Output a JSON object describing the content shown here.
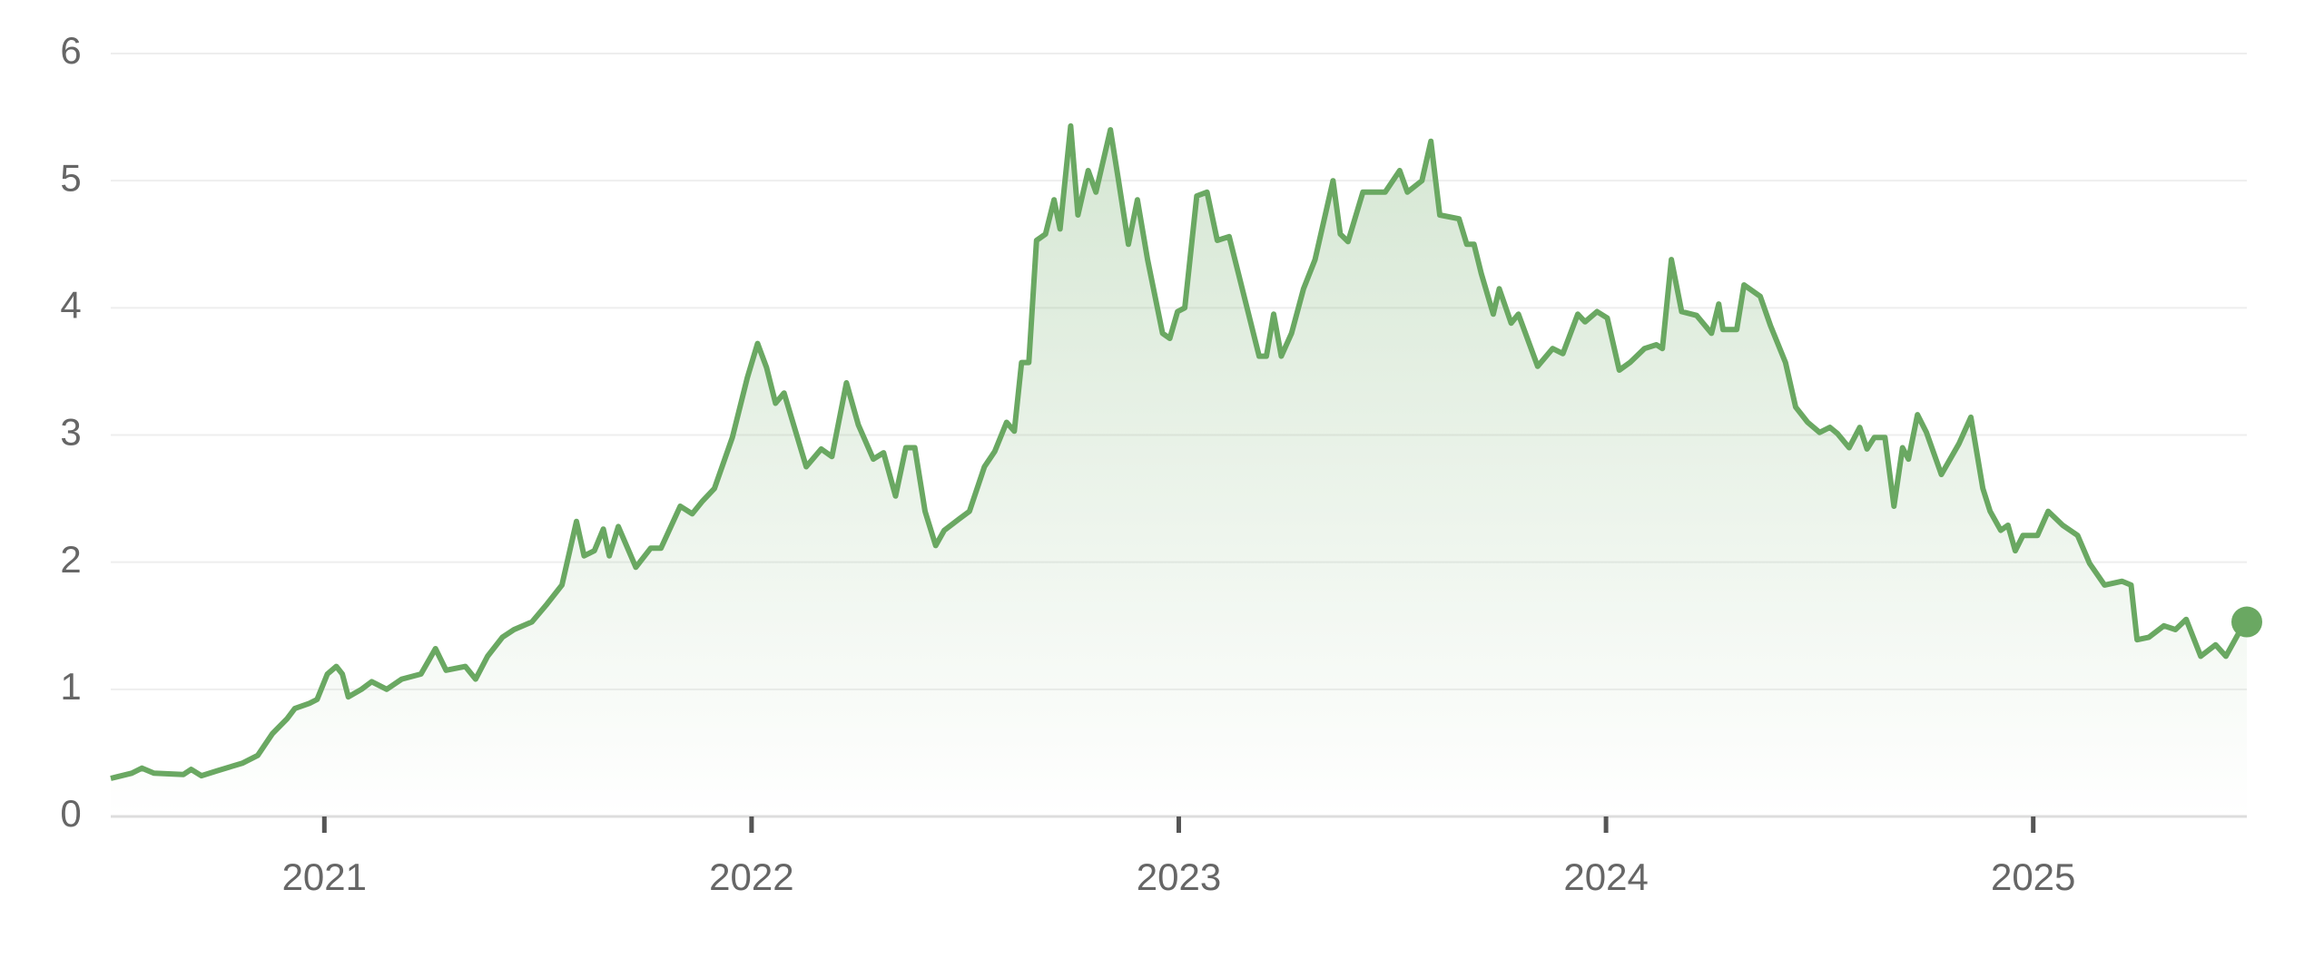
{
  "chart_data": {
    "type": "line",
    "color": "#6aa862",
    "grid": true,
    "xlim": [
      2020.5,
      2025.5
    ],
    "xticks": [
      2021,
      2022,
      2023,
      2024,
      2025
    ],
    "ylim": [
      0,
      6
    ],
    "yticks": [
      0,
      1,
      2,
      3,
      4,
      5,
      6
    ],
    "x": [
      2020.5,
      2020.549,
      2020.573,
      2020.601,
      2020.67,
      2020.688,
      2020.712,
      2020.75,
      2020.809,
      2020.844,
      2020.878,
      2020.913,
      2020.931,
      2020.965,
      2020.983,
      2021.007,
      2021.028,
      2021.042,
      2021.056,
      2021.087,
      2021.111,
      2021.146,
      2021.181,
      2021.226,
      2021.26,
      2021.285,
      2021.33,
      2021.354,
      2021.382,
      2021.417,
      2021.444,
      2021.486,
      2021.521,
      2021.556,
      2021.59,
      2021.608,
      2021.632,
      2021.653,
      2021.667,
      2021.688,
      2021.729,
      2021.764,
      2021.788,
      2021.833,
      2021.861,
      2021.885,
      2021.913,
      2021.955,
      2021.99,
      2022.014,
      2022.035,
      2022.056,
      2022.076,
      2022.128,
      2022.163,
      2022.188,
      2022.222,
      2022.25,
      2022.285,
      2022.309,
      2022.337,
      2022.361,
      2022.382,
      2022.406,
      2022.431,
      2022.451,
      2022.486,
      2022.51,
      2022.545,
      2022.569,
      2022.597,
      2022.615,
      2022.632,
      2022.649,
      2022.667,
      2022.688,
      2022.708,
      2022.722,
      2022.747,
      2022.764,
      2022.788,
      2022.806,
      2022.84,
      2022.858,
      2022.882,
      2022.903,
      2022.927,
      2022.962,
      2022.979,
      2022.997,
      2023.014,
      2023.042,
      2023.066,
      2023.09,
      2023.118,
      2023.153,
      2023.188,
      2023.205,
      2023.222,
      2023.24,
      2023.264,
      2023.292,
      2023.319,
      2023.361,
      2023.378,
      2023.396,
      2023.431,
      2023.483,
      2023.517,
      2023.535,
      2023.569,
      2023.59,
      2023.611,
      2023.656,
      2023.674,
      2023.691,
      2023.708,
      2023.736,
      2023.75,
      2023.778,
      2023.795,
      2023.84,
      2023.875,
      2023.899,
      2023.934,
      2023.951,
      2023.979,
      2024.003,
      2024.031,
      2024.056,
      2024.09,
      2024.118,
      2024.132,
      2024.153,
      2024.177,
      2024.212,
      2024.247,
      2024.264,
      2024.274,
      2024.306,
      2024.323,
      2024.361,
      2024.385,
      2024.42,
      2024.444,
      2024.472,
      2024.5,
      2024.524,
      2024.542,
      2024.569,
      2024.594,
      2024.611,
      2024.628,
      2024.653,
      2024.674,
      2024.694,
      2024.708,
      2024.729,
      2024.75,
      2024.785,
      2024.826,
      2024.854,
      2024.882,
      2024.899,
      2024.924,
      2024.941,
      2024.958,
      2024.976,
      2025.01,
      2025.035,
      2025.069,
      2025.104,
      2025.132,
      2025.167,
      2025.208,
      2025.229,
      2025.243,
      2025.271,
      2025.306,
      2025.333,
      2025.358,
      2025.392,
      2025.427,
      2025.451,
      2025.479,
      2025.5
    ],
    "values": [
      0.3,
      0.34,
      0.38,
      0.34,
      0.33,
      0.37,
      0.32,
      0.36,
      0.42,
      0.48,
      0.65,
      0.77,
      0.85,
      0.89,
      0.92,
      1.12,
      1.18,
      1.12,
      0.94,
      1.0,
      1.06,
      1.0,
      1.08,
      1.12,
      1.32,
      1.15,
      1.18,
      1.08,
      1.26,
      1.41,
      1.47,
      1.53,
      1.67,
      1.82,
      2.32,
      2.05,
      2.09,
      2.26,
      2.05,
      2.28,
      1.96,
      2.11,
      2.11,
      2.44,
      2.38,
      2.48,
      2.58,
      2.98,
      3.45,
      3.72,
      3.53,
      3.25,
      3.33,
      2.75,
      2.89,
      2.83,
      3.41,
      3.08,
      2.81,
      2.86,
      2.52,
      2.9,
      2.9,
      2.4,
      2.13,
      2.25,
      2.34,
      2.4,
      2.75,
      2.87,
      3.1,
      3.03,
      3.57,
      3.57,
      4.53,
      4.58,
      4.85,
      4.62,
      5.43,
      4.73,
      5.08,
      4.91,
      5.4,
      5.02,
      4.5,
      4.85,
      4.38,
      3.8,
      3.76,
      3.97,
      4.0,
      4.88,
      4.91,
      4.53,
      4.56,
      4.09,
      3.62,
      3.62,
      3.95,
      3.62,
      3.8,
      4.15,
      4.38,
      5.0,
      4.58,
      4.52,
      4.91,
      4.91,
      5.08,
      4.91,
      5.0,
      5.31,
      4.73,
      4.7,
      4.5,
      4.5,
      4.27,
      3.95,
      4.15,
      3.88,
      3.95,
      3.54,
      3.68,
      3.64,
      3.95,
      3.89,
      3.97,
      3.92,
      3.51,
      3.57,
      3.68,
      3.71,
      3.68,
      4.38,
      3.97,
      3.94,
      3.8,
      4.03,
      3.83,
      3.83,
      4.18,
      4.09,
      3.86,
      3.57,
      3.22,
      3.1,
      3.02,
      3.06,
      3.01,
      2.9,
      3.06,
      2.89,
      2.98,
      2.98,
      2.44,
      2.9,
      2.81,
      3.16,
      3.02,
      2.69,
      2.93,
      3.14,
      2.58,
      2.4,
      2.25,
      2.29,
      2.09,
      2.21,
      2.21,
      2.4,
      2.29,
      2.21,
      1.99,
      1.82,
      1.85,
      1.82,
      1.39,
      1.41,
      1.5,
      1.47,
      1.55,
      1.26,
      1.35,
      1.26,
      1.43,
      1.53
    ]
  }
}
